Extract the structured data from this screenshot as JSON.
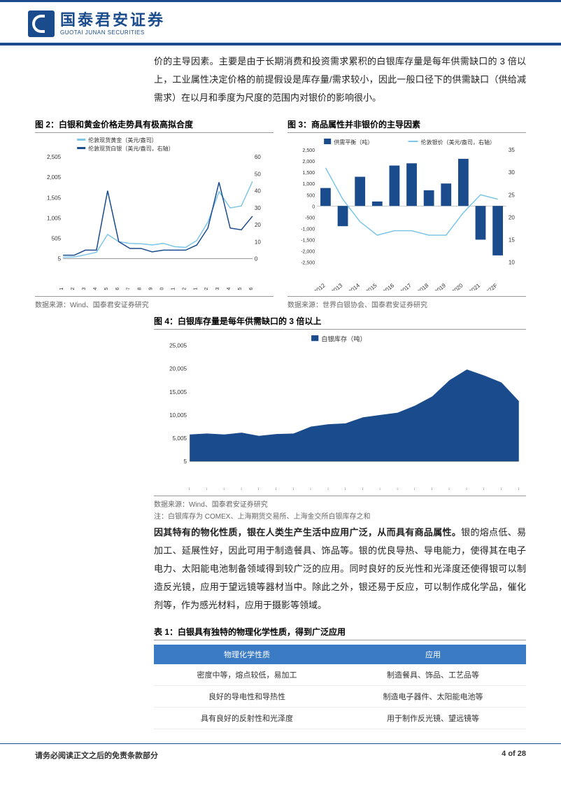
{
  "header": {
    "cn": "国泰君安证券",
    "en": "GUOTAI JUNAN SECURITIES"
  },
  "para1": "价的主导因素。主要是由于长期消费和投资需求累积的白银库存量是每年供需缺口的 3 倍以上，工业属性决定价格的前提假设是库存量/需求较小，因此一般口径下的供需缺口（供给减需求）在以月和季度为尺度的范围内对银价的影响很小。",
  "fig2": {
    "title": "图 2：白银和黄金价格走势具有极高拟合度",
    "legend": [
      "伦敦现货黄金（美元/盎司）",
      "伦敦现货白银（美元/盎司，右轴）"
    ],
    "legend_colors": [
      "#7ec6e8",
      "#1a4b8c"
    ],
    "x_labels": [
      "1968-01",
      "1971-02",
      "1974-03",
      "1977-04",
      "1980-05",
      "1983-06",
      "1986-07",
      "1989-08",
      "1992-09",
      "1995-10",
      "1998-11",
      "2001-12",
      "2005-01",
      "2008-02",
      "2011-03",
      "2014-04",
      "2017-05",
      "2020-06"
    ],
    "y_left": {
      "min": 5,
      "max": 2505,
      "ticks": [
        5,
        505,
        1005,
        1505,
        2005,
        2505
      ]
    },
    "y_right": {
      "min": 0,
      "max": 60,
      "ticks": [
        0,
        10,
        20,
        30,
        40,
        50,
        60
      ]
    },
    "gold": [
      40,
      45,
      100,
      160,
      600,
      420,
      380,
      370,
      340,
      380,
      300,
      280,
      450,
      900,
      1650,
      1250,
      1300,
      1900
    ],
    "silver": [
      2,
      2,
      5,
      5,
      40,
      10,
      6,
      6,
      4,
      5,
      5,
      5,
      8,
      18,
      45,
      18,
      17,
      25
    ],
    "src": "数据来源：Wind、国泰君安证券研究"
  },
  "fig3": {
    "title": "图 3：商品属性并非银价的主导因素",
    "legend": [
      "供需平衡（吨）",
      "伦敦银价（美元/盎司，右轴）"
    ],
    "legend_colors": [
      "#1a4b8c",
      "#7ec6e8"
    ],
    "x_labels": [
      "2012",
      "2013",
      "2014",
      "2015",
      "2016",
      "2017",
      "2018",
      "2019",
      "2020",
      "2021",
      "2022F"
    ],
    "y_left": {
      "min": -2500,
      "max": 2500,
      "ticks": [
        -2500,
        -2000,
        -1500,
        -1000,
        -500,
        0,
        500,
        1000,
        1500,
        2000,
        2500
      ]
    },
    "y_right": {
      "min": 10,
      "max": 35,
      "ticks": [
        10,
        15,
        20,
        25,
        30,
        35
      ]
    },
    "bars": [
      800,
      -900,
      1300,
      200,
      1800,
      1900,
      700,
      1000,
      2100,
      -1500,
      -2200
    ],
    "line": [
      31,
      24,
      19,
      16,
      17,
      17,
      16,
      16,
      21,
      25,
      24
    ],
    "src": "数据来源：世界白银协会、国泰君安证券研究"
  },
  "fig4": {
    "title": "图 4：白银库存量是每年供需缺口的 3 倍以上",
    "legend": "白银库存（吨）",
    "legend_color": "#1a4b8c",
    "x_labels": [
      "2013…",
      "2013…",
      "2014…",
      "2014…",
      "2015…",
      "2015…",
      "2016…",
      "2016…",
      "2017…",
      "2017…",
      "2018…",
      "2018…",
      "2019…",
      "2019…",
      "2020…",
      "2020…",
      "2021…",
      "2021…",
      "2022…",
      "2022…"
    ],
    "y": {
      "min": 5,
      "max": 25005,
      "ticks": [
        5,
        5005,
        10005,
        15005,
        20005,
        25005
      ]
    },
    "area": [
      5800,
      6000,
      5800,
      6200,
      5500,
      5900,
      6000,
      7500,
      8000,
      8200,
      9500,
      10000,
      10500,
      12000,
      14000,
      17500,
      19800,
      18500,
      17000,
      13000
    ],
    "src": "数据来源：Wind、国泰君安证券研究",
    "note": "注：白银库存为 COMEX、上海期货交易所、上海金交所白银库存之和"
  },
  "para2_bold": "因其特有的物化性质，银在人类生产生活中应用广泛，从而具有商品属性。",
  "para2_rest": "银的熔点低、易加工、延展性好，因此可用于制造餐具、饰品等。银的优良导热、导电能力，使得其在电子电力、太阳能电池制备领域得到较广泛的应用。同时良好的反光性和光泽度还使得银可以制造反光镜，应用于望远镜等器材当中。除此之外，银还易于反应，可以制作成化学品，催化剂等，作为感光材料，应用于摄影等领域。",
  "table1": {
    "title": "表 1：白银具有独特的物理化学性质，得到广泛应用",
    "headers": [
      "物理化学性质",
      "应用"
    ],
    "header_bg": "#3b7ac5",
    "rows": [
      [
        "密度中等，熔点较低，易加工",
        "制造餐具、饰品、工艺品等"
      ],
      [
        "良好的导电性和导热性",
        "制造电子器件、太阳能电池等"
      ],
      [
        "具有良好的反射性和光泽度",
        "用于制作反光镜、望远镜等"
      ]
    ]
  },
  "footer": {
    "left": "请务必阅读正文之后的免责条款部分",
    "right": "4 of 28"
  }
}
